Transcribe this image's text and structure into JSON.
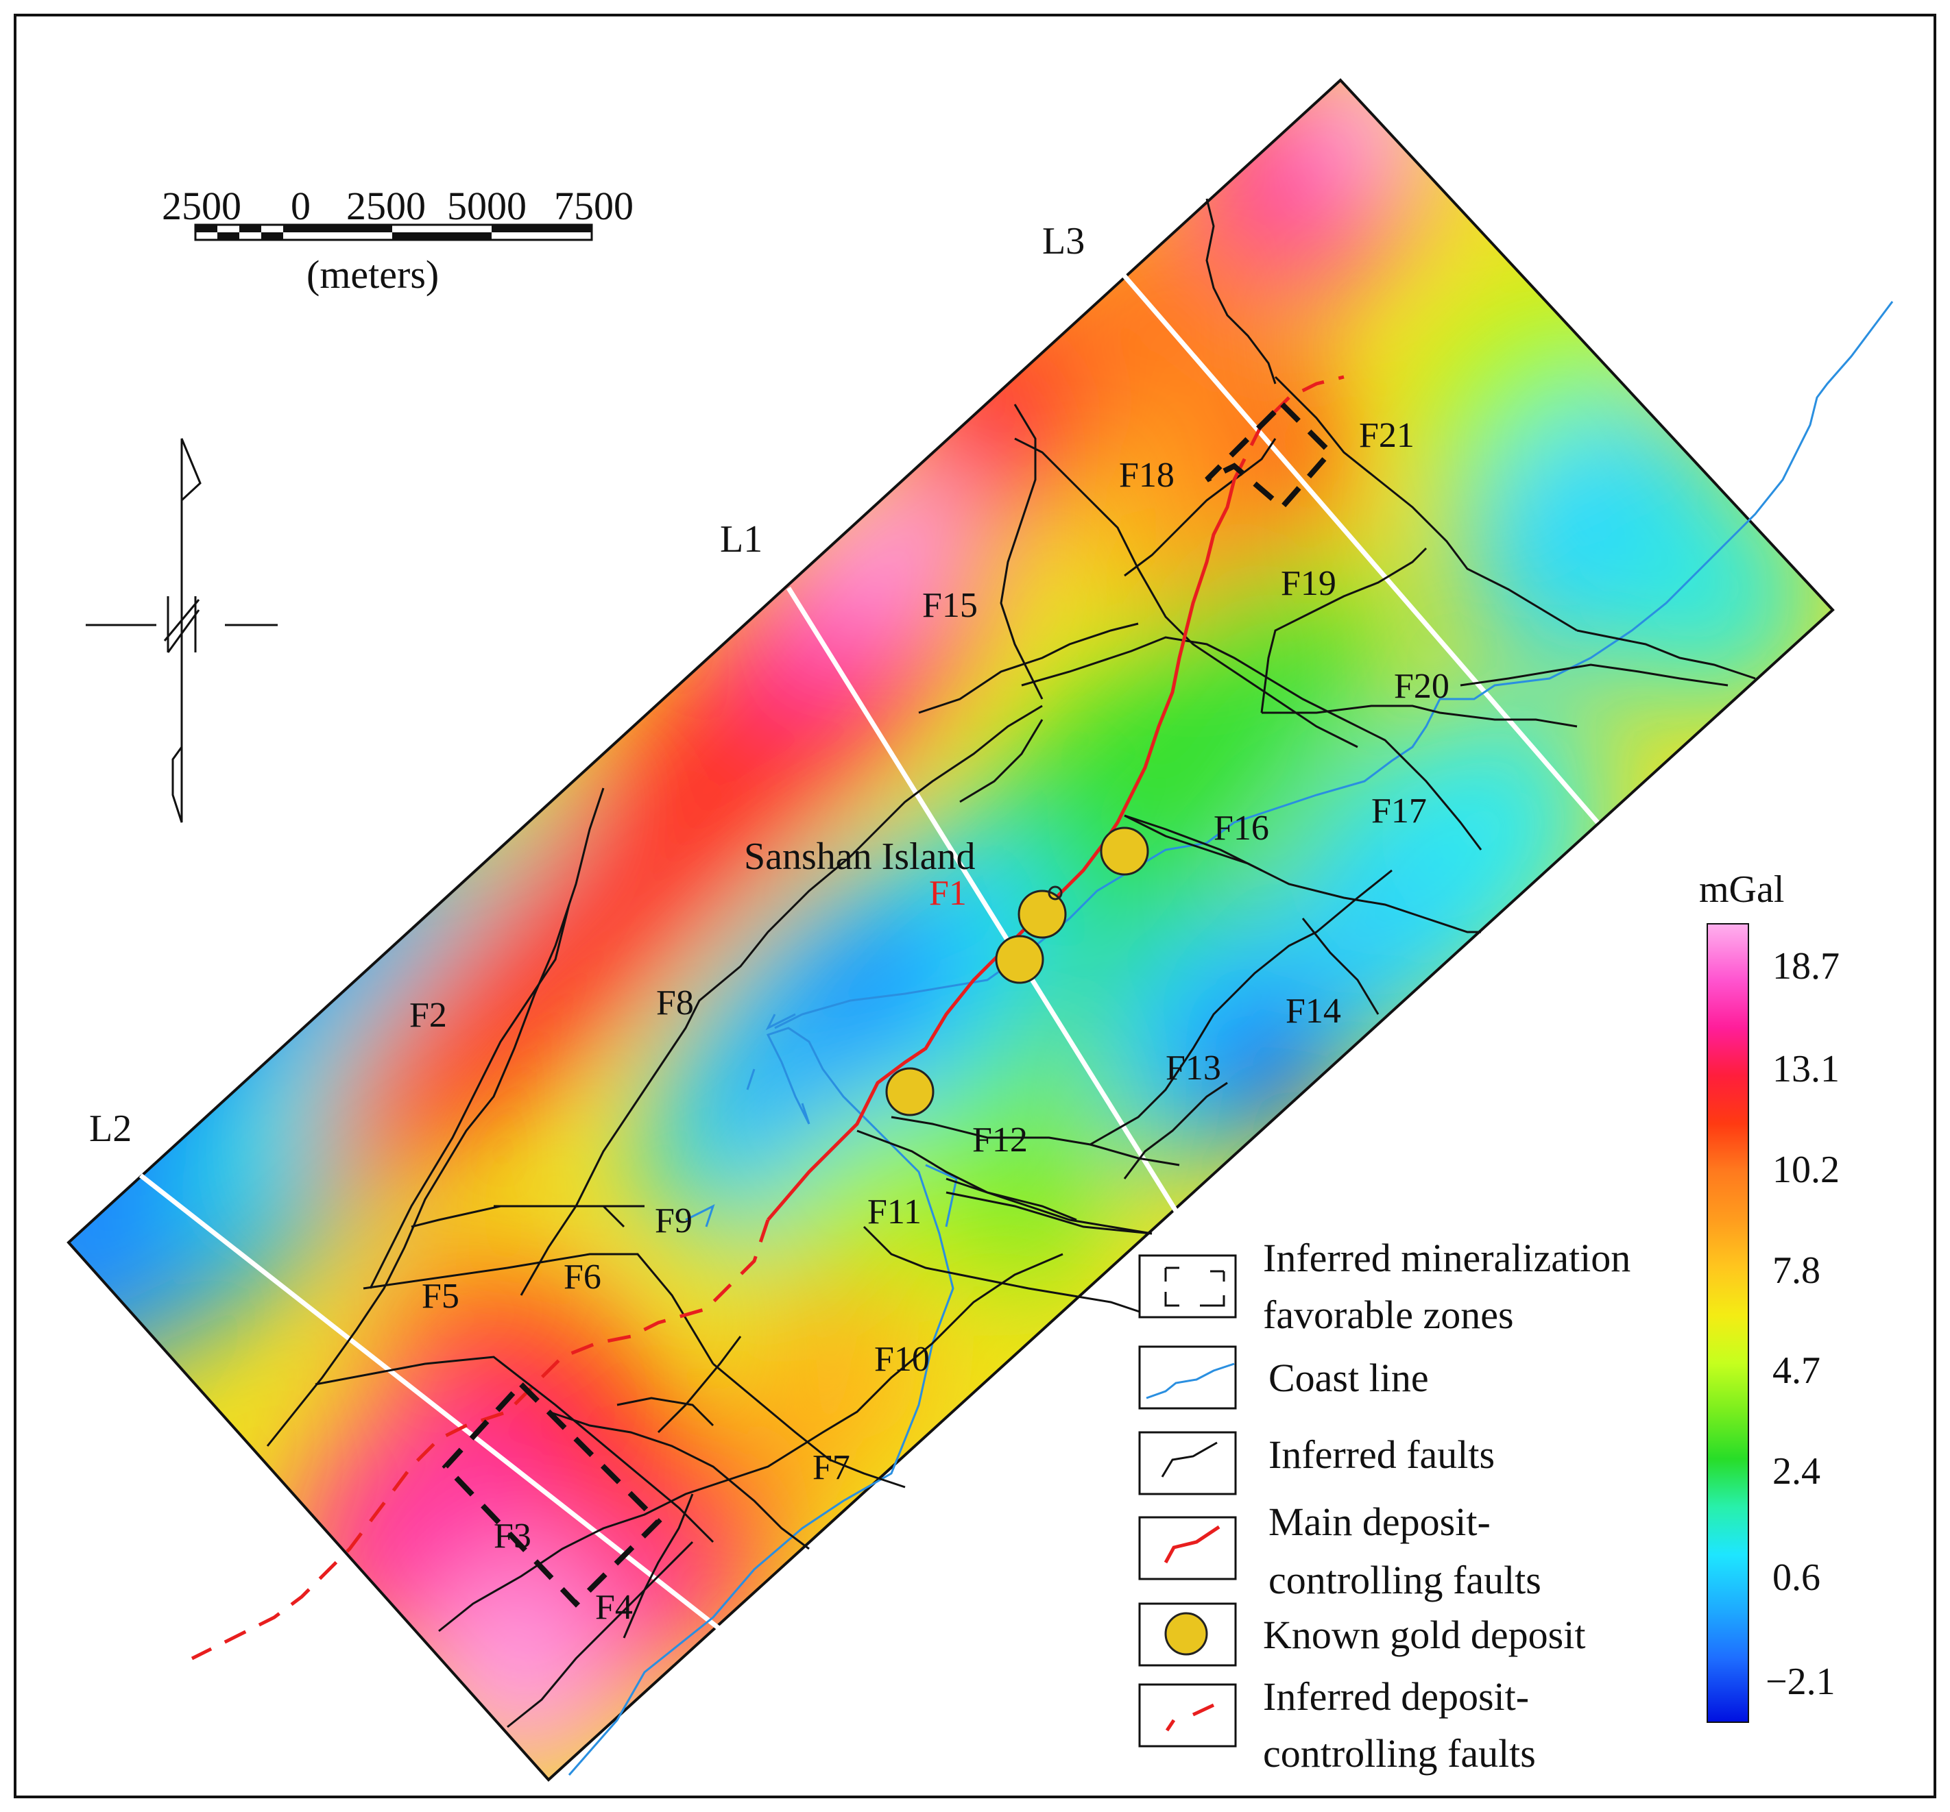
{
  "scale_bar": {
    "ticks": [
      "2500",
      "0",
      "2500",
      "5000",
      "7500"
    ],
    "unit": "(meters)"
  },
  "profile_lines": [
    "L1",
    "L2",
    "L3"
  ],
  "place_label": "Sanshan Island",
  "faults": [
    "F1",
    "F2",
    "F3",
    "F4",
    "F5",
    "F6",
    "F7",
    "F8",
    "F9",
    "F10",
    "F11",
    "F12",
    "F13",
    "F14",
    "F15",
    "F16",
    "F17",
    "F18",
    "F19",
    "F20",
    "F21"
  ],
  "colorbar": {
    "unit": "mGal",
    "tick_labels": [
      "18.7",
      "13.1",
      "10.2",
      "7.8",
      "4.7",
      "2.4",
      "0.6",
      "−2.1"
    ],
    "colors": [
      "#ff9ee6",
      "#ff22aa",
      "#ff1e3c",
      "#ff3a12",
      "#ff7a1e",
      "#ffb41e",
      "#f2e612",
      "#aaff22",
      "#28dd28",
      "#28f0aa",
      "#1ee6ff",
      "#1e9bff",
      "#0040ff",
      "#0010e0"
    ]
  },
  "legend": {
    "items": [
      {
        "label_lines": [
          "Inferred mineralization",
          "favorable zones"
        ],
        "symbol": "dashed-rectangle-symbol"
      },
      {
        "label_lines": [
          "Coast line"
        ],
        "symbol": "coast-line-symbol"
      },
      {
        "label_lines": [
          "Inferred faults"
        ],
        "symbol": "fault-line-symbol"
      },
      {
        "label_lines": [
          "Main deposit-",
          "controlling faults"
        ],
        "symbol": "main-fault-symbol"
      },
      {
        "label_lines": [
          "Known gold deposit"
        ],
        "symbol": "gold-deposit-symbol"
      },
      {
        "label_lines": [
          "Inferred deposit-",
          "controlling faults"
        ],
        "symbol": "inferred-fault-symbol"
      }
    ]
  },
  "colors": {
    "main_fault": "#e81e1e",
    "coast_line": "#2a8fe0",
    "fault": "#111111",
    "gold_deposit": "#e9c51f",
    "profile_line": "#ffffff"
  }
}
